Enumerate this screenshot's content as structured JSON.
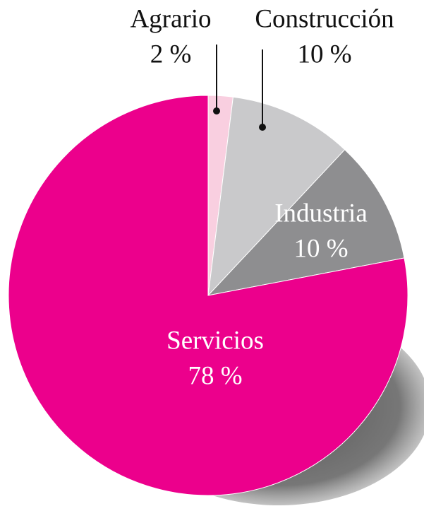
{
  "chart_data": {
    "type": "pie",
    "categories": [
      "Agrario",
      "Construcción",
      "Industria",
      "Servicios"
    ],
    "values": [
      2,
      10,
      10,
      78
    ],
    "value_labels": [
      "2 %",
      "10 %",
      "10 %",
      "78 %"
    ],
    "colors": [
      "#f9cfe0",
      "#c9c9cb",
      "#8e8e90",
      "#ec008c"
    ]
  }
}
